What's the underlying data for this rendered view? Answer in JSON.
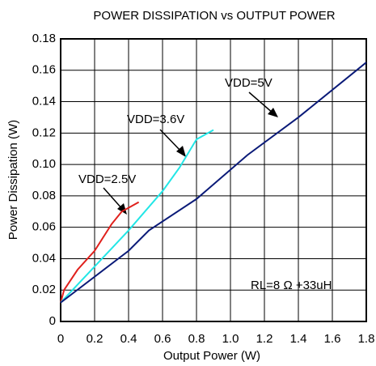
{
  "chart_data": {
    "type": "line",
    "title": "POWER DISSIPATION vs OUTPUT POWER",
    "x_label": "Output Power (W)",
    "y_label": "Power Dissipation (W)",
    "xlim": [
      0,
      1.8
    ],
    "xticks": [
      0,
      0.2,
      0.4,
      0.6,
      0.8,
      {
        "value": 1.0,
        "label": "1.0"
      },
      1.2,
      1.4,
      1.6,
      1.8
    ],
    "ylim": [
      0,
      0.18
    ],
    "yticks": [
      0,
      0.02,
      0.04,
      0.06,
      0.08,
      {
        "value": 0.1,
        "label": "0.10"
      },
      0.12,
      0.14,
      0.16,
      0.18
    ],
    "grid": true,
    "series": [
      {
        "name": "VDD=2.5V",
        "color": "#e0201c",
        "x": [
          0,
          0.02,
          0.1,
          0.2,
          0.3,
          0.36,
          0.46
        ],
        "values": [
          0.012,
          0.02,
          0.033,
          0.045,
          0.062,
          0.07,
          0.076
        ]
      },
      {
        "name": "VDD=3.6V",
        "color": "#22e6e6",
        "x": [
          0,
          0.2,
          0.4,
          0.6,
          0.7,
          0.8,
          0.9
        ],
        "values": [
          0.012,
          0.035,
          0.058,
          0.083,
          0.098,
          0.116,
          0.122
        ]
      },
      {
        "name": "VDD=5V",
        "color": "#0a1a78",
        "x": [
          0,
          0.4,
          0.52,
          0.8,
          1.1,
          1.4,
          1.8
        ],
        "values": [
          0.012,
          0.045,
          0.058,
          0.078,
          0.106,
          0.13,
          0.165
        ]
      }
    ],
    "annotations": [
      "RL=8 Ω +33uH"
    ]
  }
}
